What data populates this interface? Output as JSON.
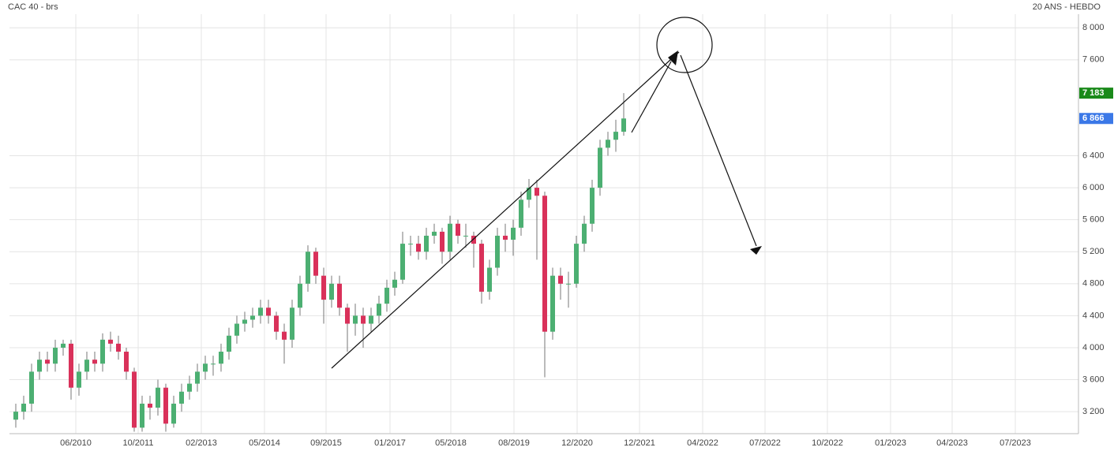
{
  "chart_data": {
    "type": "candlestick",
    "title": "CAC 40 - brs",
    "subtitle": "20 ANS - HEBDO",
    "up_color": "#4caf72",
    "down_color": "#d9315a",
    "grid": true,
    "xlim": [
      -0.8,
      134.6
    ],
    "ylim": [
      2925,
      8170
    ],
    "xticks": [
      {
        "value": 7.6,
        "label": "06/2010"
      },
      {
        "value": 15.5,
        "label": "10/2011"
      },
      {
        "value": 23.5,
        "label": "02/2013"
      },
      {
        "value": 31.5,
        "label": "05/2014"
      },
      {
        "value": 39.3,
        "label": "09/2015"
      },
      {
        "value": 47.4,
        "label": "01/2017"
      },
      {
        "value": 55.1,
        "label": "05/2018"
      },
      {
        "value": 63.1,
        "label": "08/2019"
      },
      {
        "value": 71.1,
        "label": "12/2020"
      },
      {
        "value": 79,
        "label": "12/2021"
      },
      {
        "value": 87,
        "label": "04/2022"
      },
      {
        "value": 94.9,
        "label": "07/2022"
      },
      {
        "value": 102.8,
        "label": "10/2022"
      },
      {
        "value": 110.8,
        "label": "01/2023"
      },
      {
        "value": 118.6,
        "label": "04/2023"
      },
      {
        "value": 126.6,
        "label": "07/2023"
      }
    ],
    "yticks": [
      {
        "value": 3200,
        "label": "3 200"
      },
      {
        "value": 3600,
        "label": "3 600"
      },
      {
        "value": 4000,
        "label": "4 000"
      },
      {
        "value": 4400,
        "label": "4 400"
      },
      {
        "value": 4800,
        "label": "4 800"
      },
      {
        "value": 5200,
        "label": "5 200"
      },
      {
        "value": 5600,
        "label": "5 600"
      },
      {
        "value": 6000,
        "label": "6 000"
      },
      {
        "value": 6400,
        "label": "6 400"
      },
      {
        "value": 7600,
        "label": "7 600"
      },
      {
        "value": 8000,
        "label": "8 000"
      }
    ],
    "price_tags": [
      {
        "value": 7183,
        "label": "7 183",
        "color": "#1a8a1a"
      },
      {
        "value": 6866,
        "label": "6 866",
        "color": "#3b78e7"
      }
    ],
    "x": [
      0,
      1,
      2,
      3,
      4,
      5,
      6,
      7,
      8,
      9,
      10,
      11,
      12,
      13,
      14,
      15,
      16,
      17,
      18,
      19,
      20,
      21,
      22,
      23,
      24,
      25,
      26,
      27,
      28,
      29,
      30,
      31,
      32,
      33,
      34,
      35,
      36,
      37,
      38,
      39,
      40,
      41,
      42,
      43,
      44,
      45,
      46,
      47,
      48,
      49,
      50,
      51,
      52,
      53,
      54,
      55,
      56,
      57,
      58,
      59,
      60,
      61,
      62,
      63,
      64,
      65,
      66,
      67,
      68,
      69,
      70,
      71,
      72,
      73,
      74,
      75,
      76,
      77
    ],
    "open": [
      3100,
      3200,
      3300,
      3700,
      3850,
      3800,
      4000,
      4050,
      3500,
      3700,
      3850,
      3800,
      4100,
      4050,
      3950,
      3700,
      3000,
      3300,
      3250,
      3500,
      3050,
      3300,
      3450,
      3550,
      3700,
      3800,
      3800,
      3950,
      4150,
      4300,
      4350,
      4400,
      4500,
      4400,
      4200,
      4100,
      4500,
      4800,
      5200,
      4900,
      4600,
      4800,
      4500,
      4300,
      4400,
      4300,
      4400,
      4550,
      4750,
      4850,
      5300,
      5300,
      5200,
      5400,
      5450,
      5200,
      5550,
      5400,
      5400,
      5300,
      4700,
      5000,
      5400,
      5350,
      5500,
      5850,
      6000,
      5900,
      4200,
      4900,
      4800,
      4800,
      5300,
      5550,
      6000,
      6500,
      6600,
      6700
    ],
    "high": [
      3300,
      3400,
      3800,
      3950,
      3950,
      4100,
      4100,
      4100,
      3800,
      3950,
      3950,
      4180,
      4200,
      4150,
      4000,
      3750,
      3400,
      3400,
      3600,
      3550,
      3400,
      3550,
      3650,
      3800,
      3900,
      3900,
      4050,
      4250,
      4400,
      4450,
      4500,
      4600,
      4600,
      4450,
      4300,
      4600,
      4900,
      5280,
      5250,
      5000,
      4900,
      4900,
      4550,
      4550,
      4500,
      4500,
      4650,
      4850,
      4950,
      5450,
      5400,
      5400,
      5500,
      5550,
      5500,
      5650,
      5600,
      5550,
      5450,
      5350,
      5100,
      5500,
      5550,
      5600,
      5950,
      6110,
      6100,
      5950,
      5000,
      5000,
      4950,
      5400,
      5650,
      6100,
      6600,
      6700,
      6850,
      7183
    ],
    "low": [
      3000,
      3100,
      3200,
      3600,
      3700,
      3700,
      3900,
      3350,
      3400,
      3600,
      3700,
      3700,
      3950,
      3850,
      3600,
      2950,
      2950,
      3100,
      3150,
      2950,
      3000,
      3200,
      3350,
      3450,
      3600,
      3650,
      3700,
      3850,
      4050,
      4200,
      4250,
      4300,
      4300,
      4100,
      3800,
      4000,
      4400,
      4700,
      4800,
      4300,
      4500,
      4400,
      3950,
      4150,
      4000,
      4200,
      4300,
      4450,
      4650,
      4800,
      5150,
      5100,
      5100,
      5300,
      5050,
      5100,
      5300,
      5250,
      5000,
      4550,
      4600,
      4900,
      5200,
      5150,
      5400,
      5750,
      5100,
      3630,
      4100,
      4600,
      4500,
      4750,
      5200,
      5450,
      5900,
      6400,
      6450,
      6650
    ],
    "close": [
      3200,
      3300,
      3700,
      3850,
      3800,
      4000,
      4050,
      3500,
      3700,
      3850,
      3800,
      4100,
      4050,
      3950,
      3700,
      3000,
      3300,
      3250,
      3500,
      3050,
      3300,
      3450,
      3550,
      3700,
      3800,
      3800,
      3950,
      4150,
      4300,
      4350,
      4400,
      4500,
      4400,
      4200,
      4100,
      4500,
      4800,
      5200,
      4900,
      4600,
      4800,
      4500,
      4300,
      4400,
      4300,
      4400,
      4550,
      4750,
      4850,
      5300,
      5300,
      5200,
      5400,
      5450,
      5200,
      5550,
      5400,
      5400,
      5300,
      4700,
      5000,
      5400,
      5350,
      5500,
      5850,
      6000,
      5900,
      4200,
      4900,
      4800,
      4800,
      5300,
      5550,
      6000,
      6500,
      6600,
      6700,
      6866
    ]
  }
}
